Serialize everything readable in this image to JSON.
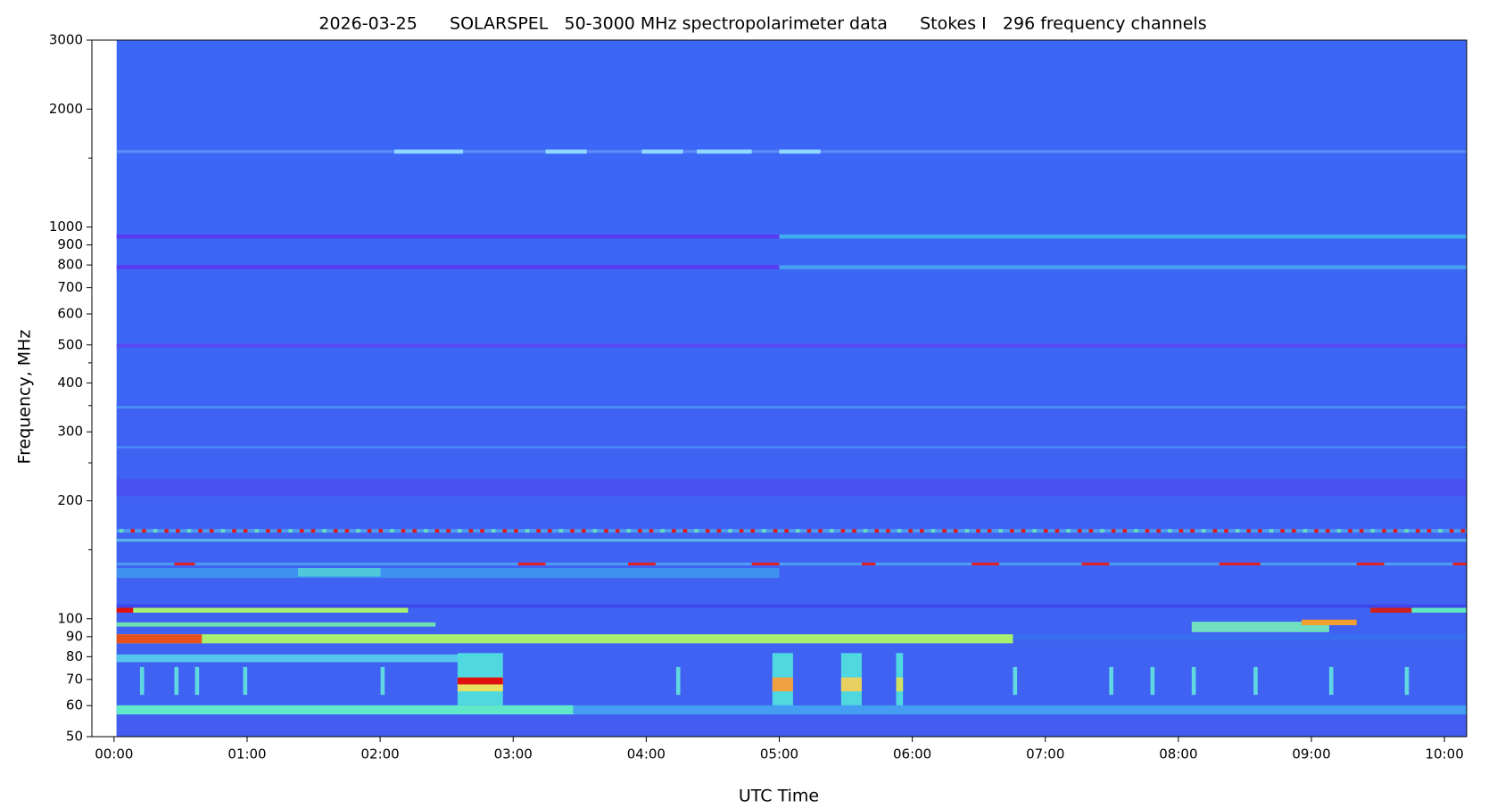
{
  "chart_data": {
    "type": "spectrogram",
    "title": "2026-03-25      SOLARSPEL   50-3000 MHz spectropolarimeter data      Stokes I   296 frequency channels",
    "x_label": "UTC Time",
    "y_label": "Frequency, MHz",
    "xlim": [
      -10,
      610
    ],
    "xticks": [
      {
        "value": 0,
        "label": "00:00"
      },
      {
        "value": 60,
        "label": "01:00"
      },
      {
        "value": 120,
        "label": "02:00"
      },
      {
        "value": 180,
        "label": "03:00"
      },
      {
        "value": 240,
        "label": "04:00"
      },
      {
        "value": 300,
        "label": "05:00"
      },
      {
        "value": 360,
        "label": "06:00"
      },
      {
        "value": 420,
        "label": "07:00"
      },
      {
        "value": 480,
        "label": "08:00"
      },
      {
        "value": 540,
        "label": "09:00"
      },
      {
        "value": 600,
        "label": "10:00"
      }
    ],
    "ylim": [
      50,
      3000
    ],
    "yscale": "log",
    "yticks": [
      50,
      60,
      70,
      80,
      90,
      100,
      200,
      300,
      400,
      500,
      600,
      700,
      800,
      900,
      1000,
      2000,
      3000
    ],
    "yminor_ticks": [
      150,
      250,
      350,
      450,
      1500
    ]
  }
}
